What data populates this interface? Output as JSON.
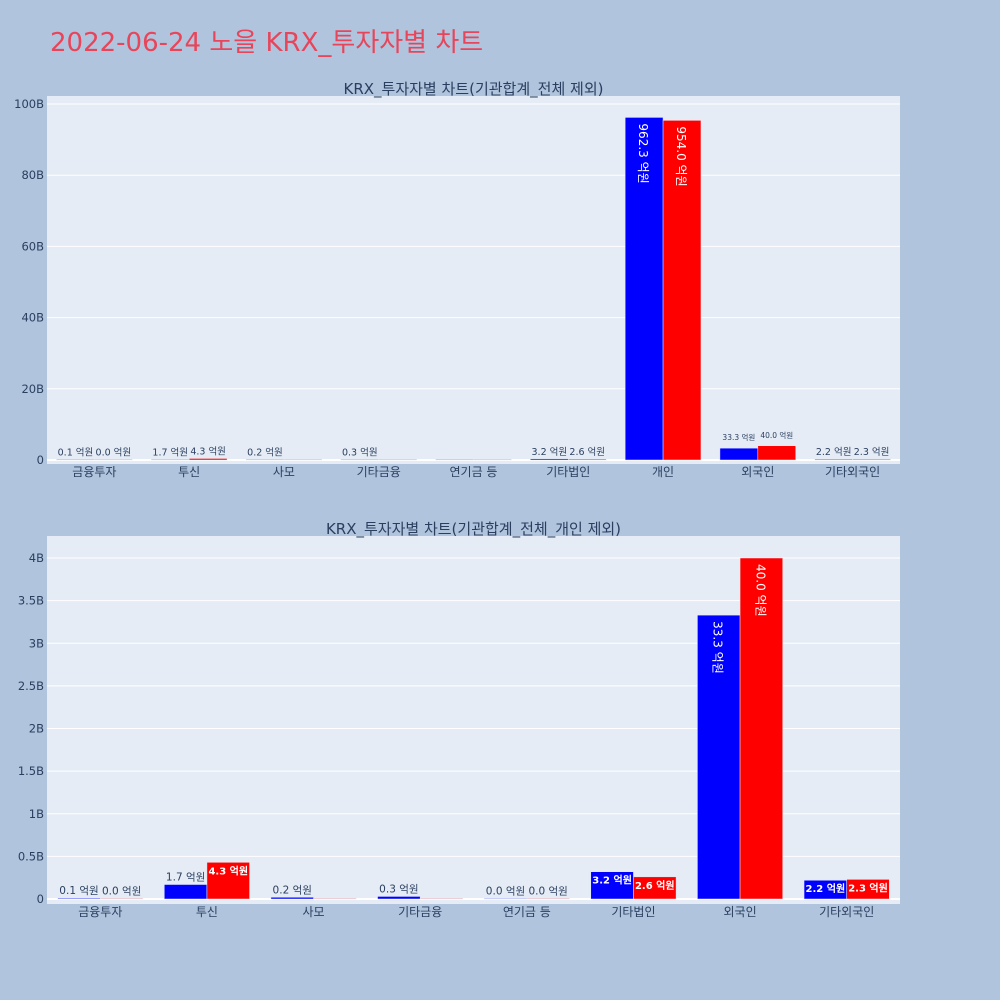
{
  "page": {
    "title": "2022-06-24 노을 KRX_투자자별 차트"
  },
  "colors": {
    "buy": "#0000ff",
    "sell": "#ff0000",
    "plot_bg": "#e5ecf6",
    "paper_bg": "#b0c4de",
    "grid": "#ffffff",
    "title": "#e8455a",
    "axis_text": "#2a3f5f"
  },
  "chart_data": [
    {
      "type": "bar",
      "title": "KRX_투자자별 차트(기관합계_전체 제외)",
      "categories": [
        "금융투자",
        "투신",
        "사모",
        "기타금융",
        "연기금 등",
        "기타법인",
        "개인",
        "외국인",
        "기타외국인"
      ],
      "series": [
        {
          "color": "#0000ff",
          "values": [
            10000000,
            170000000,
            20000000,
            30000000,
            0,
            320000000,
            96230000000,
            3330000000,
            220000000
          ],
          "labels": [
            "0.1 억원",
            "1.7 억원",
            "0.2 억원",
            "0.3 억원",
            "",
            "3.2 억원",
            "962.3 억원",
            "33.3 억원",
            "2.2 억원"
          ]
        },
        {
          "color": "#ff0000",
          "values": [
            0,
            430000000,
            0,
            0,
            0,
            260000000,
            95400000000,
            4000000000,
            230000000
          ],
          "labels": [
            "0.0 억원",
            "4.3 억원",
            "",
            "",
            "",
            "2.6 억원",
            "954.0 억원",
            "40.0 억원",
            "2.3 억원"
          ]
        }
      ],
      "ylim": [
        0,
        100000000000
      ],
      "yticks": [
        0,
        20000000000,
        40000000000,
        60000000000,
        80000000000,
        100000000000
      ],
      "ytick_labels": [
        "0",
        "20B",
        "40B",
        "60B",
        "80B",
        "100B"
      ],
      "grid": true
    },
    {
      "type": "bar",
      "title": "KRX_투자자별 차트(기관합계_전체_개인 제외)",
      "categories": [
        "금융투자",
        "투신",
        "사모",
        "기타금융",
        "연기금 등",
        "기타법인",
        "외국인",
        "기타외국인"
      ],
      "series": [
        {
          "color": "#0000ff",
          "values": [
            10000000,
            170000000,
            20000000,
            30000000,
            0,
            320000000,
            3330000000,
            220000000
          ],
          "labels": [
            "0.1 억원",
            "1.7 억원",
            "0.2 억원",
            "0.3 억원",
            "0.0 억원",
            "3.2 억원",
            "33.3 억원",
            "2.2 억원"
          ]
        },
        {
          "color": "#ff0000",
          "values": [
            0,
            430000000,
            0,
            0,
            0,
            260000000,
            4000000000,
            230000000
          ],
          "labels": [
            "0.0 억원",
            "4.3 억원",
            "",
            "",
            "0.0 억원",
            "2.6 억원",
            "40.0 억원",
            "2.3 억원"
          ]
        }
      ],
      "ylim": [
        0,
        4250000000
      ],
      "yticks": [
        0,
        500000000,
        1000000000,
        1500000000,
        2000000000,
        2500000000,
        3000000000,
        3500000000,
        4000000000
      ],
      "ytick_labels": [
        "0",
        "0.5B",
        "1B",
        "1.5B",
        "2B",
        "2.5B",
        "3B",
        "3.5B",
        "4B"
      ],
      "grid": true
    }
  ]
}
